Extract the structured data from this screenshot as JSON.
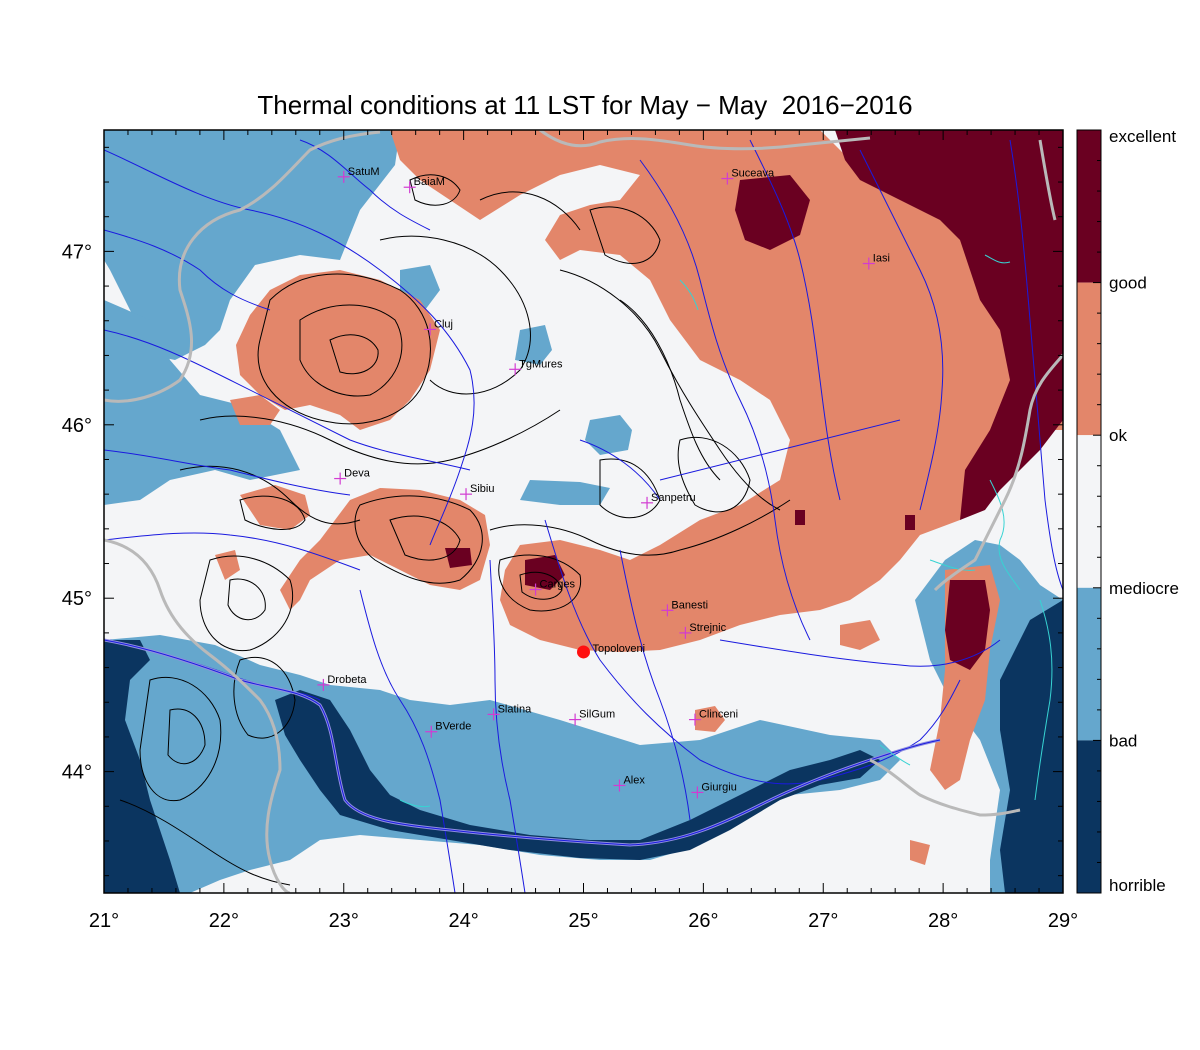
{
  "title": "Thermal conditions at 11 LST for May − May  2016−2016",
  "colors": {
    "horrible": "#0b3560",
    "bad": "#65a7cd",
    "mediocre": "#f4f5f7",
    "ok": "#e3866a",
    "good": "#6a0021",
    "river": "#1a1adf",
    "border": "#b9b9b9",
    "contour": "#000000",
    "city": "#d23bd2",
    "marker": "#ff1010",
    "lake": "#37d3d3"
  },
  "axes": {
    "x_ticks": [
      "21°",
      "22°",
      "23°",
      "24°",
      "25°",
      "26°",
      "27°",
      "28°",
      "29°"
    ],
    "y_ticks": [
      "47°",
      "46°",
      "45°",
      "44°"
    ],
    "lon_range": [
      21,
      29
    ],
    "lat_range": [
      43.3,
      47.7
    ]
  },
  "colorbar": {
    "labels": [
      "excellent",
      "good",
      "ok",
      "mediocre",
      "bad",
      "horrible"
    ]
  },
  "cities": [
    {
      "name": "SatuM",
      "lon": 23.0,
      "lat": 47.43
    },
    {
      "name": "BaiaM",
      "lon": 23.55,
      "lat": 47.37
    },
    {
      "name": "Suceava",
      "lon": 26.2,
      "lat": 47.42
    },
    {
      "name": "Iasi",
      "lon": 27.38,
      "lat": 46.93
    },
    {
      "name": "Cluj",
      "lon": 23.72,
      "lat": 46.55
    },
    {
      "name": "TgMures",
      "lon": 24.43,
      "lat": 46.32
    },
    {
      "name": "Deva",
      "lon": 22.97,
      "lat": 45.69
    },
    {
      "name": "Sibiu",
      "lon": 24.02,
      "lat": 45.6
    },
    {
      "name": "Sanpetru",
      "lon": 25.53,
      "lat": 45.55
    },
    {
      "name": "Carges",
      "lon": 24.6,
      "lat": 45.05
    },
    {
      "name": "Banesti",
      "lon": 25.7,
      "lat": 44.93
    },
    {
      "name": "Strejnic",
      "lon": 25.85,
      "lat": 44.8
    },
    {
      "name": "Drobeta",
      "lon": 22.83,
      "lat": 44.5
    },
    {
      "name": "Slatina",
      "lon": 24.25,
      "lat": 44.33
    },
    {
      "name": "SilGum",
      "lon": 24.93,
      "lat": 44.3
    },
    {
      "name": "Clinceni",
      "lon": 25.93,
      "lat": 44.3
    },
    {
      "name": "BVerde",
      "lon": 23.73,
      "lat": 44.23
    },
    {
      "name": "Alex",
      "lon": 25.3,
      "lat": 43.92
    },
    {
      "name": "Giurgiu",
      "lon": 25.95,
      "lat": 43.88
    }
  ],
  "marker": {
    "name": "Topoloveni",
    "lon": 25.0,
    "lat": 44.69
  }
}
